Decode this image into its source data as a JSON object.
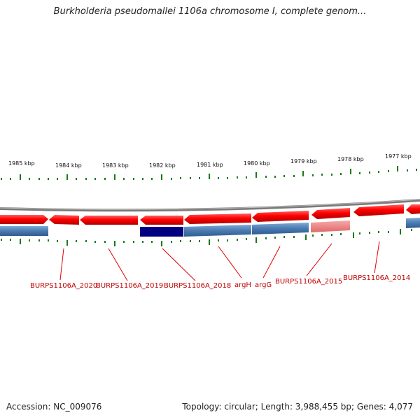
{
  "title": "Burkholderia pseudomallei 1106a chromosome I, complete genom...",
  "footer": {
    "accession": "Accession: NC_009076",
    "summary": "Topology: circular; Length: 3,988,455 bp; Genes: 4,077"
  },
  "ruler_ticks": [
    "1985 kbp",
    "1984 kbp",
    "1983 kbp",
    "1982 kbp",
    "1981 kbp",
    "1980 kbp",
    "1979 kbp",
    "1978 kbp",
    "1977 kbp"
  ],
  "gene_labels": [
    "BURPS1106A_2020",
    "BURPS1106A_2019",
    "BURPS1106A_2018",
    "argH",
    "argG",
    "BURPS1106A_2015",
    "BURPS1106A_2014"
  ],
  "colors": {
    "gene_forward": "#ff0000",
    "gene_pseudo": "#f08080",
    "cds_blue": "#4a7ab0",
    "cds_selected": "#000080",
    "backbone": "#808080",
    "tick": "#1a7a1a",
    "label": "#c00000"
  }
}
